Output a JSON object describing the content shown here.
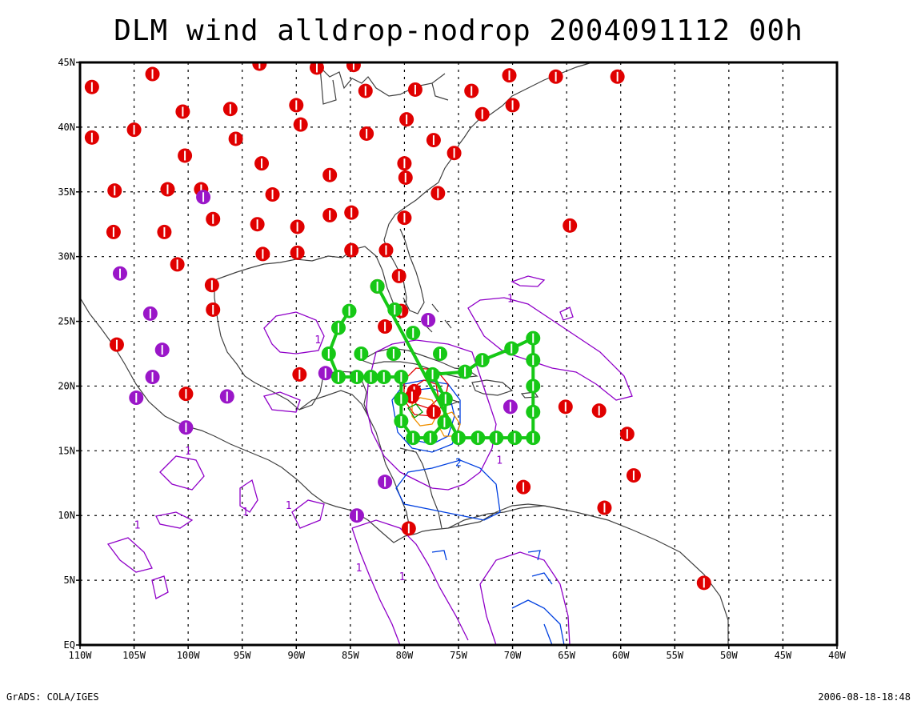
{
  "title": "DLM wind alldrop-nodrop 2004091112 00h",
  "footer": {
    "left": "GrADS: COLA/IGES",
    "right": "2006-08-18-18:48"
  },
  "axes": {
    "lon_min": -110,
    "lon_max": -40,
    "lat_min": 0,
    "lat_max": 45,
    "x_ticks": [
      {
        "v": -110,
        "label": "110W"
      },
      {
        "v": -105,
        "label": "105W"
      },
      {
        "v": -100,
        "label": "100W"
      },
      {
        "v": -95,
        "label": "95W"
      },
      {
        "v": -90,
        "label": "90W"
      },
      {
        "v": -85,
        "label": "85W"
      },
      {
        "v": -80,
        "label": "80W"
      },
      {
        "v": -75,
        "label": "75W"
      },
      {
        "v": -70,
        "label": "70W"
      },
      {
        "v": -65,
        "label": "65W"
      },
      {
        "v": -60,
        "label": "60W"
      },
      {
        "v": -55,
        "label": "55W"
      },
      {
        "v": -50,
        "label": "50W"
      },
      {
        "v": -45,
        "label": "45W"
      },
      {
        "v": -40,
        "label": "40W"
      }
    ],
    "y_ticks": [
      {
        "v": 0,
        "label": "EQ"
      },
      {
        "v": 5,
        "label": "5N"
      },
      {
        "v": 10,
        "label": "10N"
      },
      {
        "v": 15,
        "label": "15N"
      },
      {
        "v": 20,
        "label": "20N"
      },
      {
        "v": 25,
        "label": "25N"
      },
      {
        "v": 30,
        "label": "30N"
      },
      {
        "v": 35,
        "label": "35N"
      },
      {
        "v": 40,
        "label": "40N"
      },
      {
        "v": 45,
        "label": "45N"
      }
    ],
    "grid": true
  },
  "colors": {
    "red_obs": "#e00000",
    "purple_obs": "#9a16c8",
    "green_obs": "#16c816",
    "coast": "#404040",
    "contour_purple": "#9000c8",
    "contour_blue": "#0040e0",
    "contour_red": "#e00000",
    "contour_orange": "#f09000"
  },
  "observations": {
    "red": [
      [
        -108.9,
        43.1
      ],
      [
        -103.3,
        44.1
      ],
      [
        -93.4,
        44.9
      ],
      [
        -88.1,
        44.6
      ],
      [
        -84.7,
        44.8
      ],
      [
        -83.6,
        42.8
      ],
      [
        -79.0,
        42.9
      ],
      [
        -73.8,
        42.8
      ],
      [
        -70.3,
        44.0
      ],
      [
        -66.0,
        43.9
      ],
      [
        -60.3,
        43.9
      ],
      [
        -108.9,
        39.2
      ],
      [
        -105.0,
        39.8
      ],
      [
        -100.5,
        41.2
      ],
      [
        -96.1,
        41.4
      ],
      [
        -90.0,
        41.7
      ],
      [
        -89.6,
        40.2
      ],
      [
        -95.6,
        39.1
      ],
      [
        -83.5,
        39.5
      ],
      [
        -79.8,
        40.6
      ],
      [
        -77.3,
        39.0
      ],
      [
        -72.8,
        41.0
      ],
      [
        -70.0,
        41.7
      ],
      [
        -75.4,
        38.0
      ],
      [
        -106.8,
        35.1
      ],
      [
        -101.9,
        35.2
      ],
      [
        -98.8,
        35.2
      ],
      [
        -93.2,
        37.2
      ],
      [
        -86.9,
        36.3
      ],
      [
        -80.0,
        37.2
      ],
      [
        -79.9,
        36.1
      ],
      [
        -76.9,
        34.9
      ],
      [
        -92.2,
        34.8
      ],
      [
        -100.3,
        37.8
      ],
      [
        -106.9,
        31.9
      ],
      [
        -102.2,
        31.9
      ],
      [
        -97.7,
        32.9
      ],
      [
        -93.6,
        32.5
      ],
      [
        -89.9,
        32.3
      ],
      [
        -86.9,
        33.2
      ],
      [
        -84.9,
        33.4
      ],
      [
        -80.0,
        33.0
      ],
      [
        -64.7,
        32.4
      ],
      [
        -101.0,
        29.4
      ],
      [
        -93.1,
        30.2
      ],
      [
        -89.9,
        30.3
      ],
      [
        -84.9,
        30.5
      ],
      [
        -81.7,
        30.5
      ],
      [
        -80.5,
        28.5
      ],
      [
        -82.5,
        27.7
      ],
      [
        -97.8,
        27.8
      ],
      [
        -97.7,
        25.9
      ],
      [
        -80.3,
        25.8
      ],
      [
        -81.8,
        24.6
      ],
      [
        -106.6,
        23.2
      ],
      [
        -89.7,
        20.9
      ],
      [
        -100.2,
        19.4
      ],
      [
        -79.1,
        19.6
      ],
      [
        -79.3,
        19.2
      ],
      [
        -77.3,
        18.0
      ],
      [
        -65.1,
        18.4
      ],
      [
        -62.0,
        18.1
      ],
      [
        -59.4,
        16.3
      ],
      [
        -58.8,
        13.1
      ],
      [
        -69.0,
        12.2
      ],
      [
        -61.5,
        10.6
      ],
      [
        -79.6,
        9.0
      ],
      [
        -52.3,
        4.8
      ]
    ],
    "purple": [
      [
        -98.6,
        34.6
      ],
      [
        -106.3,
        28.7
      ],
      [
        -103.5,
        25.6
      ],
      [
        -102.4,
        22.8
      ],
      [
        -103.3,
        20.7
      ],
      [
        -104.8,
        19.1
      ],
      [
        -96.4,
        19.2
      ],
      [
        -100.2,
        16.8
      ],
      [
        -87.3,
        21.0
      ],
      [
        -77.8,
        25.1
      ],
      [
        -70.2,
        18.4
      ],
      [
        -81.8,
        12.6
      ],
      [
        -84.4,
        10.0
      ]
    ],
    "green": [
      [
        -85.1,
        25.8
      ],
      [
        -86.1,
        24.5
      ],
      [
        -87.0,
        22.5
      ],
      [
        -86.1,
        20.7
      ],
      [
        -84.4,
        20.7
      ],
      [
        -83.1,
        20.7
      ],
      [
        -81.9,
        20.7
      ],
      [
        -80.3,
        20.7
      ],
      [
        -80.3,
        19.0
      ],
      [
        -80.3,
        17.3
      ],
      [
        -79.2,
        16.0
      ],
      [
        -77.6,
        16.0
      ],
      [
        -76.3,
        17.2
      ],
      [
        -76.2,
        19.0
      ],
      [
        -77.4,
        20.9
      ],
      [
        -74.4,
        21.1
      ],
      [
        -72.8,
        22.0
      ],
      [
        -70.1,
        22.9
      ],
      [
        -68.1,
        23.7
      ],
      [
        -68.1,
        22.0
      ],
      [
        -68.1,
        20.0
      ],
      [
        -68.1,
        18.0
      ],
      [
        -68.1,
        16.0
      ],
      [
        -69.8,
        16.0
      ],
      [
        -71.5,
        16.0
      ],
      [
        -73.2,
        16.0
      ],
      [
        -75.0,
        16.0
      ],
      [
        -76.7,
        22.5
      ],
      [
        -79.2,
        24.1
      ],
      [
        -80.9,
        25.9
      ],
      [
        -82.5,
        27.7
      ],
      [
        -84.0,
        22.5
      ],
      [
        -81.0,
        22.5
      ]
    ]
  },
  "contour_labels": [
    {
      "text": "1",
      "lon": -88.3,
      "lat": 23.3,
      "color": "purple"
    },
    {
      "text": "1",
      "lon": -70.5,
      "lat": 26.5,
      "color": "purple"
    },
    {
      "text": "1",
      "lon": -100.3,
      "lat": 14.7,
      "color": "purple"
    },
    {
      "text": "1",
      "lon": -91.0,
      "lat": 10.5,
      "color": "purple"
    },
    {
      "text": "1",
      "lon": -95.0,
      "lat": 10.0,
      "color": "purple"
    },
    {
      "text": "1",
      "lon": -84.5,
      "lat": 5.7,
      "color": "purple"
    },
    {
      "text": "1",
      "lon": -80.5,
      "lat": 5.0,
      "color": "purple"
    },
    {
      "text": "1",
      "lon": -71.5,
      "lat": 14.0,
      "color": "purple"
    },
    {
      "text": "2",
      "lon": -75.3,
      "lat": 13.8,
      "color": "blue"
    },
    {
      "text": "1",
      "lon": -105.0,
      "lat": 9.0,
      "color": "purple"
    }
  ]
}
